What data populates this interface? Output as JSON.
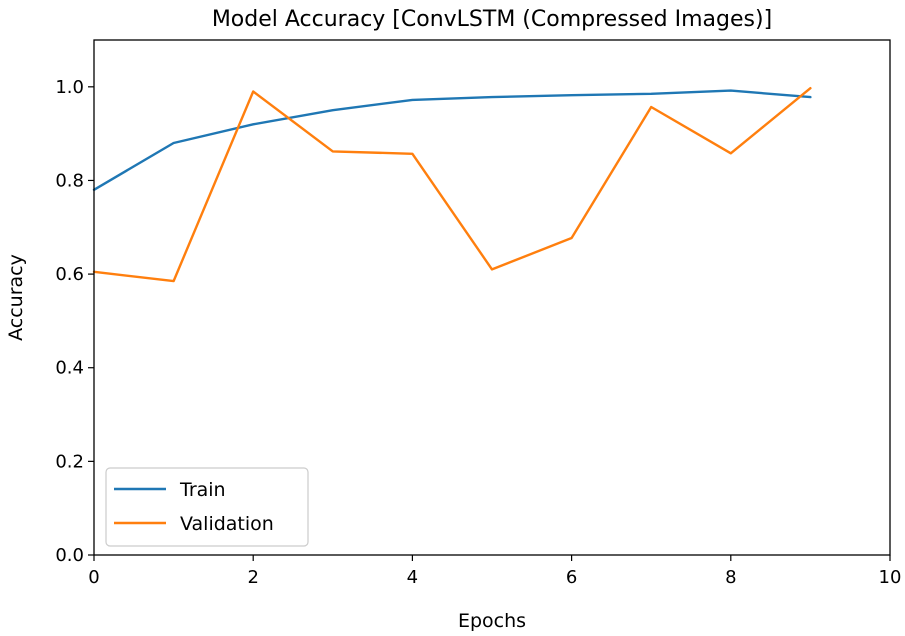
{
  "chart_data": {
    "type": "line",
    "title": "Model Accuracy [ConvLSTM (Compressed Images)]",
    "xlabel": "Epochs",
    "ylabel": "Accuracy",
    "xlim": [
      0,
      10
    ],
    "ylim": [
      0,
      1.1
    ],
    "xticks": [
      0,
      2,
      4,
      6,
      8,
      10
    ],
    "xtick_labels": [
      "0",
      "2",
      "4",
      "6",
      "8",
      "10"
    ],
    "yticks": [
      0.0,
      0.2,
      0.4,
      0.6,
      0.8,
      1.0
    ],
    "ytick_labels": [
      "0.0",
      "0.2",
      "0.4",
      "0.6",
      "0.8",
      "1.0"
    ],
    "grid": false,
    "legend_position": "lower-left",
    "series": [
      {
        "name": "Train",
        "color": "#1f77b4",
        "x": [
          0,
          1,
          2,
          3,
          4,
          5,
          6,
          7,
          8,
          9
        ],
        "values": [
          0.78,
          0.88,
          0.92,
          0.95,
          0.972,
          0.978,
          0.982,
          0.985,
          0.992,
          0.978
        ]
      },
      {
        "name": "Validation",
        "color": "#ff7f0e",
        "x": [
          0,
          1,
          2,
          3,
          4,
          5,
          6,
          7,
          8,
          9
        ],
        "values": [
          0.605,
          0.585,
          0.99,
          0.862,
          0.857,
          0.61,
          0.677,
          0.957,
          0.858,
          0.997
        ]
      }
    ]
  }
}
